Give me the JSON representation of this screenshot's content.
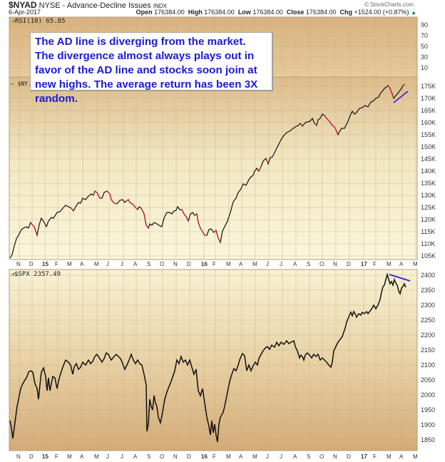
{
  "header": {
    "symbol": "$NYAD",
    "exchange_desc": "NYSE - Advance-Decline Issues",
    "type": "INDX",
    "date": "6-Apr-2017",
    "open_label": "Open",
    "open": "176384.00",
    "high_label": "High",
    "high": "176384.00",
    "low_label": "Low",
    "low": "176384.00",
    "close_label": "Close",
    "close": "176384.00",
    "chg_label": "Chg",
    "chg": "+1524.00 (+0.87%)",
    "chg_arrow": "▲",
    "brand": "© StockCharts.com"
  },
  "panels": {
    "rsi": {
      "label": "RSI(10) 65.85",
      "ticks": [
        "90",
        "70",
        "50",
        "30",
        "10"
      ]
    },
    "nyad": {
      "label": "$NY...",
      "ticks": [
        "175K",
        "170K",
        "165K",
        "160K",
        "155K",
        "150K",
        "145K",
        "140K",
        "135K",
        "130K",
        "125K",
        "120K",
        "115K",
        "110K",
        "105K"
      ]
    },
    "spx": {
      "label": "$SPX 2357.49",
      "ticks": [
        "2400",
        "2350",
        "2300",
        "2250",
        "2200",
        "2150",
        "2100",
        "2050",
        "2000",
        "1950",
        "1900",
        "1850"
      ]
    }
  },
  "annotation": {
    "text": "The AD line is diverging from the market. The divergence almost always plays out in favor of the AD line and stocks soon join at new highs. The average return has been 3X random."
  },
  "x_axis": [
    "N",
    "D",
    "15",
    "F",
    "M",
    "A",
    "M",
    "J",
    "J",
    "A",
    "S",
    "O",
    "N",
    "D",
    "16",
    "F",
    "M",
    "A",
    "M",
    "J",
    "J",
    "A",
    "S",
    "O",
    "N",
    "D",
    "17",
    "F",
    "M",
    "A",
    "M"
  ],
  "colors": {
    "panel_top": "#d9b585",
    "panel_mid": "#f8f3d6",
    "annotation_text": "#1a1ad8",
    "trendline": "#2222dd",
    "ad_up": "#111111",
    "ad_down": "#cc1133",
    "spx_line": "#111111"
  },
  "chart_data": [
    {
      "type": "line",
      "title": "$NYAD NYSE - Advance-Decline Issues INDX",
      "series": [
        {
          "name": "$NYAD",
          "x": [
            "Nov-14",
            "Jan-15",
            "Mar-15",
            "May-15",
            "Jul-15",
            "Sep-15",
            "Nov-15",
            "Jan-16",
            "Feb-16",
            "Apr-16",
            "Jun-16",
            "Aug-16",
            "Oct-16",
            "Nov-16",
            "Dec-16",
            "Feb-17",
            "Mar-17",
            "Apr-17"
          ],
          "values": [
            105000,
            117000,
            121000,
            130000,
            126000,
            119000,
            124000,
            111000,
            110000,
            130000,
            146000,
            160000,
            158000,
            155000,
            163000,
            170000,
            175000,
            176384
          ]
        }
      ],
      "ylabel": "",
      "ylim": [
        103000,
        178000
      ],
      "annotations": [
        "Blue rising trendline under AD line Mar-Apr 2017 (higher lows)"
      ]
    },
    {
      "type": "line",
      "title": "RSI(10) 65.85",
      "ylim": [
        0,
        100
      ],
      "ticks": [
        10,
        30,
        50,
        70,
        90
      ]
    },
    {
      "type": "line",
      "title": "$SPX 2357.49",
      "series": [
        {
          "name": "$SPX",
          "x": [
            "Oct-14",
            "Nov-14",
            "Jan-15",
            "Mar-15",
            "May-15",
            "Jul-15",
            "Aug-15",
            "Sep-15",
            "Nov-15",
            "Jan-16",
            "Feb-16",
            "Apr-16",
            "Jun-16",
            "Aug-16",
            "Nov-16",
            "Dec-16",
            "Feb-17",
            "Mar-17",
            "Apr-17"
          ],
          "values": [
            1860,
            2030,
            2050,
            2100,
            2120,
            2110,
            1880,
            1930,
            2100,
            1920,
            1830,
            2080,
            2090,
            2180,
            2090,
            2260,
            2300,
            2395,
            2357
          ]
        }
      ],
      "ylim": [
        1820,
        2410
      ],
      "annotations": [
        "Blue falling trendline over SPX highs Mar-Apr 2017"
      ]
    }
  ]
}
